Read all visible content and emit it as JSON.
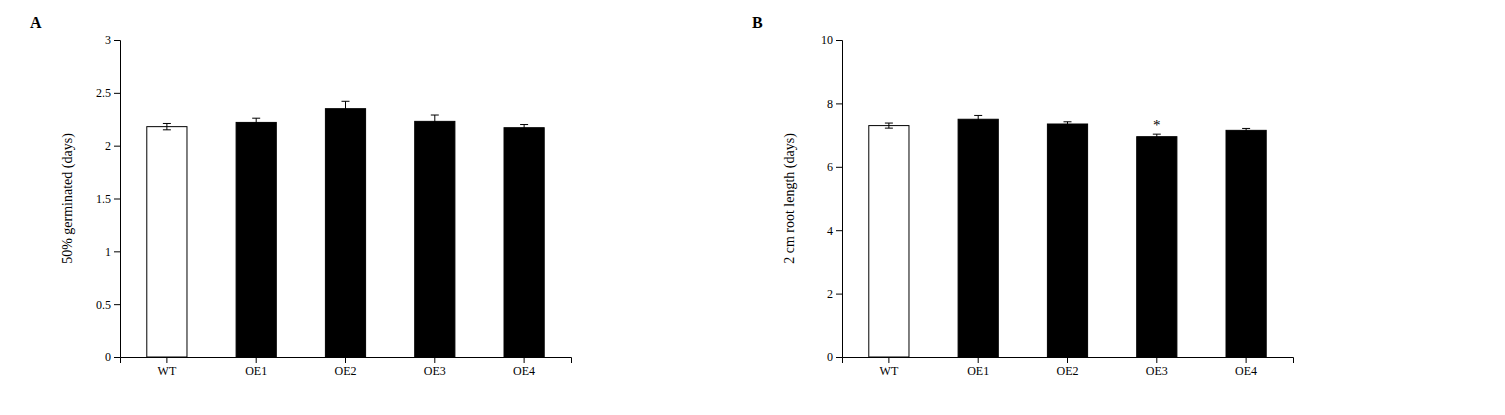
{
  "chart_data": [
    {
      "type": "bar",
      "title": "A",
      "categories": [
        "WT",
        "OE1",
        "OE2",
        "OE3",
        "OE4"
      ],
      "values": [
        2.18,
        2.22,
        2.35,
        2.23,
        2.17
      ],
      "errors": [
        0.03,
        0.04,
        0.07,
        0.06,
        0.03
      ],
      "colors": [
        "white",
        "black",
        "black",
        "black",
        "black"
      ],
      "ylabel": "50% germinated (days)",
      "ylim": [
        0,
        3
      ],
      "yticks": [
        0,
        0.5,
        1,
        1.5,
        2,
        2.5,
        3
      ],
      "grid": false,
      "annotations": []
    },
    {
      "type": "bar",
      "title": "B",
      "categories": [
        "WT",
        "OE1",
        "OE2",
        "OE3",
        "OE4"
      ],
      "values": [
        7.3,
        7.5,
        7.35,
        6.95,
        7.15
      ],
      "errors": [
        0.08,
        0.12,
        0.07,
        0.08,
        0.06
      ],
      "colors": [
        "white",
        "black",
        "black",
        "black",
        "black"
      ],
      "ylabel": "2 cm root length (days)",
      "ylim": [
        0,
        10
      ],
      "yticks": [
        0,
        2,
        4,
        6,
        8,
        10
      ],
      "grid": false,
      "annotations": [
        {
          "text": "*",
          "category": "OE3"
        }
      ]
    }
  ]
}
